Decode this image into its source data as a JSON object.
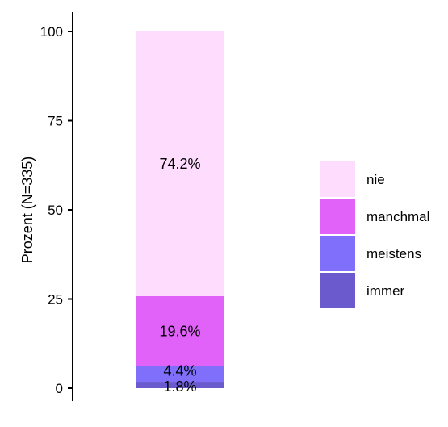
{
  "chart_data": {
    "type": "bar",
    "stacked": true,
    "ylabel": "Prozent (N=335)",
    "xlabel": "",
    "ylim": [
      0,
      100
    ],
    "yticks": [
      0,
      25,
      50,
      75,
      100
    ],
    "grid": false,
    "legend_position": "right",
    "series": [
      {
        "name": "immer",
        "value": 1.8,
        "label": "1.8%",
        "color": "#6a5acd"
      },
      {
        "name": "meistens",
        "value": 4.4,
        "label": "4.4%",
        "color": "#7f6ffb"
      },
      {
        "name": "manchmal",
        "value": 19.6,
        "label": "19.6%",
        "color": "#e062f8"
      },
      {
        "name": "nie",
        "value": 74.2,
        "label": "74.2%",
        "color": "#fddcfd"
      }
    ],
    "legend_order": [
      "nie",
      "manchmal",
      "meistens",
      "immer"
    ]
  }
}
